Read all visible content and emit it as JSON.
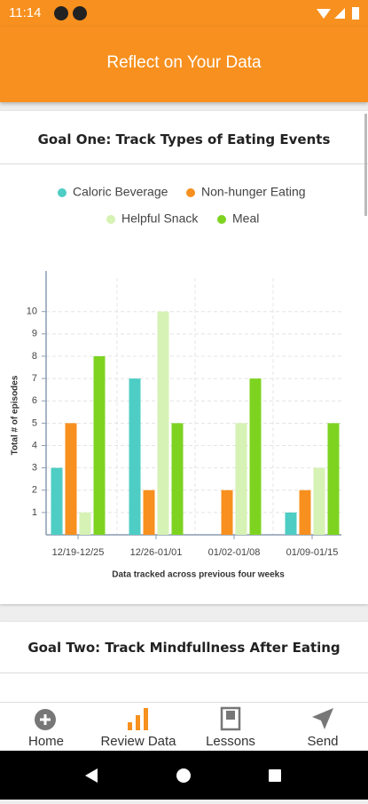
{
  "status_bar": {
    "time": "11:14"
  },
  "header": {
    "title": "Reflect on Your Data"
  },
  "cards": [
    {
      "title": "Goal One: Track Types of Eating Events",
      "chart": {
        "type": "bar",
        "ylabel": "Total # of episodes",
        "xlabel": "Data tracked across previous four weeks",
        "categories": [
          "12/19-12/25",
          "12/26-01/01",
          "01/02-01/08",
          "01/09-01/15"
        ],
        "series": [
          {
            "name": "Caloric Beverage",
            "color": "#4ecdc4",
            "values": [
              3,
              7,
              0,
              1
            ]
          },
          {
            "name": "Non-hunger Eating",
            "color": "#f7901e",
            "values": [
              5,
              2,
              2,
              2
            ]
          },
          {
            "name": "Helpful Snack",
            "color": "#d6f2b4",
            "values": [
              1,
              10,
              5,
              3
            ]
          },
          {
            "name": "Meal",
            "color": "#7ed321",
            "values": [
              8,
              5,
              7,
              5
            ]
          }
        ],
        "ylim": [
          0,
          11.5
        ],
        "yticks": [
          1,
          2,
          3,
          4,
          5,
          6,
          7,
          8,
          9,
          10
        ],
        "grid": true
      }
    },
    {
      "title": "Goal Two: Track Mindfullness After Eating"
    }
  ],
  "nav": {
    "items": [
      {
        "label": "Home"
      },
      {
        "label": "Review Data"
      },
      {
        "label": "Lessons"
      },
      {
        "label": "Send"
      }
    ]
  }
}
